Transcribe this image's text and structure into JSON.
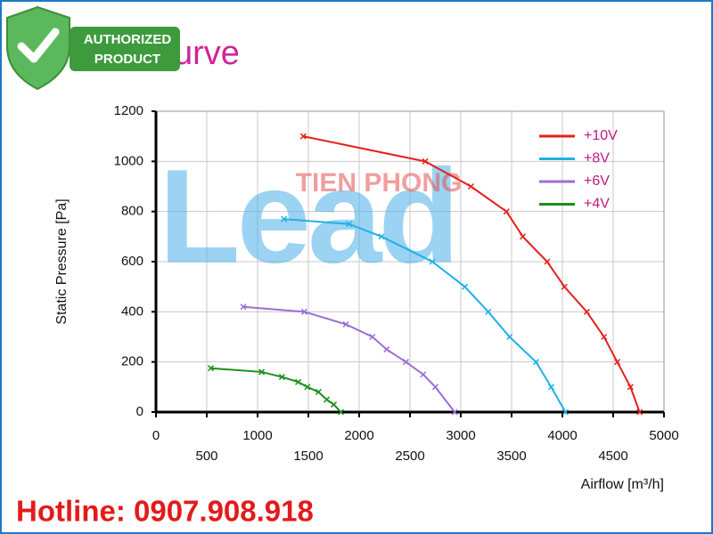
{
  "badge": {
    "line1": "AUTHORIZED",
    "line2": "PRODUCT"
  },
  "watermark": {
    "brand": "TIEN PHONG",
    "logo": "Lead"
  },
  "chart_data": {
    "type": "line",
    "title": "urve",
    "x_label": "Airflow [m³/h]",
    "y_label": "Static Pressure [Pa]",
    "xlim": [
      0,
      5000
    ],
    "ylim": [
      0,
      1200
    ],
    "xticks": [
      0,
      500,
      1000,
      1500,
      2000,
      2500,
      3000,
      3500,
      4000,
      4500,
      5000
    ],
    "yticks": [
      0,
      200,
      400,
      600,
      800,
      1000,
      1200
    ],
    "grid": true,
    "legend": "upper right",
    "series": [
      {
        "name": "+10V",
        "color": "#e3211c",
        "x": [
          1450,
          2650,
          3100,
          3450,
          3610,
          3850,
          4020,
          4240,
          4410,
          4540,
          4670,
          4760
        ],
        "values": [
          1100,
          1000,
          900,
          800,
          700,
          600,
          500,
          400,
          300,
          200,
          100,
          0
        ]
      },
      {
        "name": "+8V",
        "color": "#1fb1e6",
        "x": [
          1260,
          1900,
          2220,
          2720,
          3040,
          3270,
          3480,
          3740,
          3890,
          4030
        ],
        "values": [
          770,
          750,
          700,
          600,
          500,
          400,
          300,
          200,
          100,
          0
        ]
      },
      {
        "name": "+6V",
        "color": "#9a6fd3",
        "x": [
          860,
          1460,
          1870,
          2130,
          2270,
          2460,
          2630,
          2750,
          2940
        ],
        "values": [
          420,
          400,
          350,
          300,
          250,
          200,
          150,
          100,
          0
        ]
      },
      {
        "name": "+4V",
        "color": "#1c8f1c",
        "x": [
          540,
          1040,
          1240,
          1400,
          1490,
          1600,
          1680,
          1750,
          1820
        ],
        "values": [
          175,
          160,
          140,
          120,
          100,
          80,
          50,
          30,
          0
        ]
      }
    ]
  },
  "footer": {
    "hotline": "Hotline: 0907.908.918"
  }
}
